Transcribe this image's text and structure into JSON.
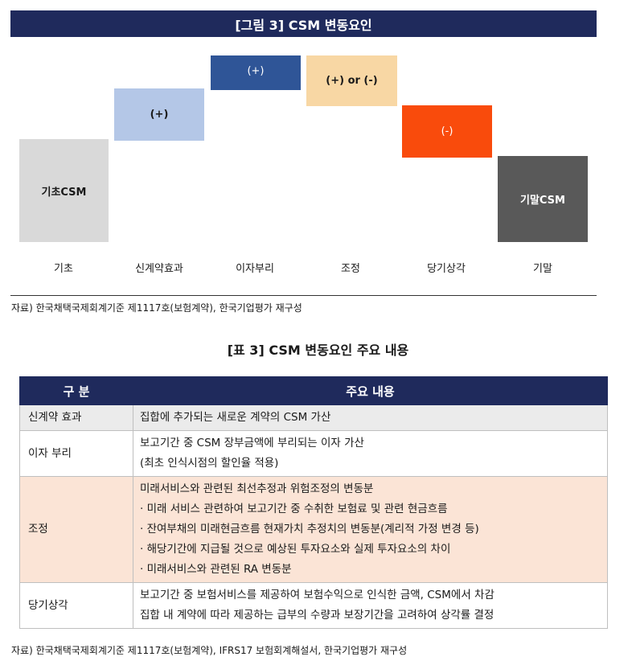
{
  "figure": {
    "title": "[그림 3] CSM 변동요인",
    "boxes": {
      "opening": {
        "label": "기초CSM",
        "color": "#d9d9d9"
      },
      "new_contracts": {
        "label": "(+)",
        "color": "#b4c7e7"
      },
      "interest": {
        "label": "(+)",
        "color": "#2f5597"
      },
      "adjustment": {
        "label": "(+) or (-)",
        "color": "#f8d7a4"
      },
      "amortization": {
        "label": "(-)",
        "color": "#f94b0c"
      },
      "closing": {
        "label": "기말CSM",
        "color": "#595959"
      }
    },
    "categories": [
      "기초",
      "신계약효과",
      "이자부리",
      "조정",
      "당기상각",
      "기말"
    ],
    "source": "자료) 한국채택국제회계기준 제1117호(보험계약), 한국기업평가 재구성"
  },
  "table": {
    "title": "[표 3] CSM 변동요인 주요 내용",
    "headers": [
      "구 분",
      "주요 내용"
    ],
    "rows": [
      {
        "key": "신계약 효과",
        "lines": [
          "집합에 추가되는 새로운 계약의 CSM 가산"
        ]
      },
      {
        "key": "이자 부리",
        "lines": [
          "보고기간 중 CSM 장부금액에 부리되는 이자 가산",
          "(최초 인식시점의 할인율 적용)"
        ]
      },
      {
        "key": "조정",
        "lines": [
          "미래서비스와 관련된 최선추정과 위험조정의 변동분",
          "· 미래 서비스 관련하여 보고기간 중 수취한 보험료 및 관련 현금흐름",
          "· 잔여부채의 미래현금흐름 현재가치 추정치의 변동분(계리적 가정 변경 등)",
          "· 해당기간에 지급될 것으로 예상된 투자요소와 실제 투자요소의 차이",
          "· 미래서비스와 관련된 RA 변동분"
        ]
      },
      {
        "key": "당기상각",
        "lines": [
          "보고기간 중 보험서비스를 제공하여 보험수익으로 인식한 금액, CSM에서 차감",
          "집합 내 계약에 따라 제공하는 급부의 수량과 보장기간을 고려하여 상각률 결정"
        ]
      }
    ],
    "source": "자료) 한국채택국제회계기준 제1117호(보험계약), IFRS17 보험회계해설서, 한국기업평가 재구성"
  }
}
